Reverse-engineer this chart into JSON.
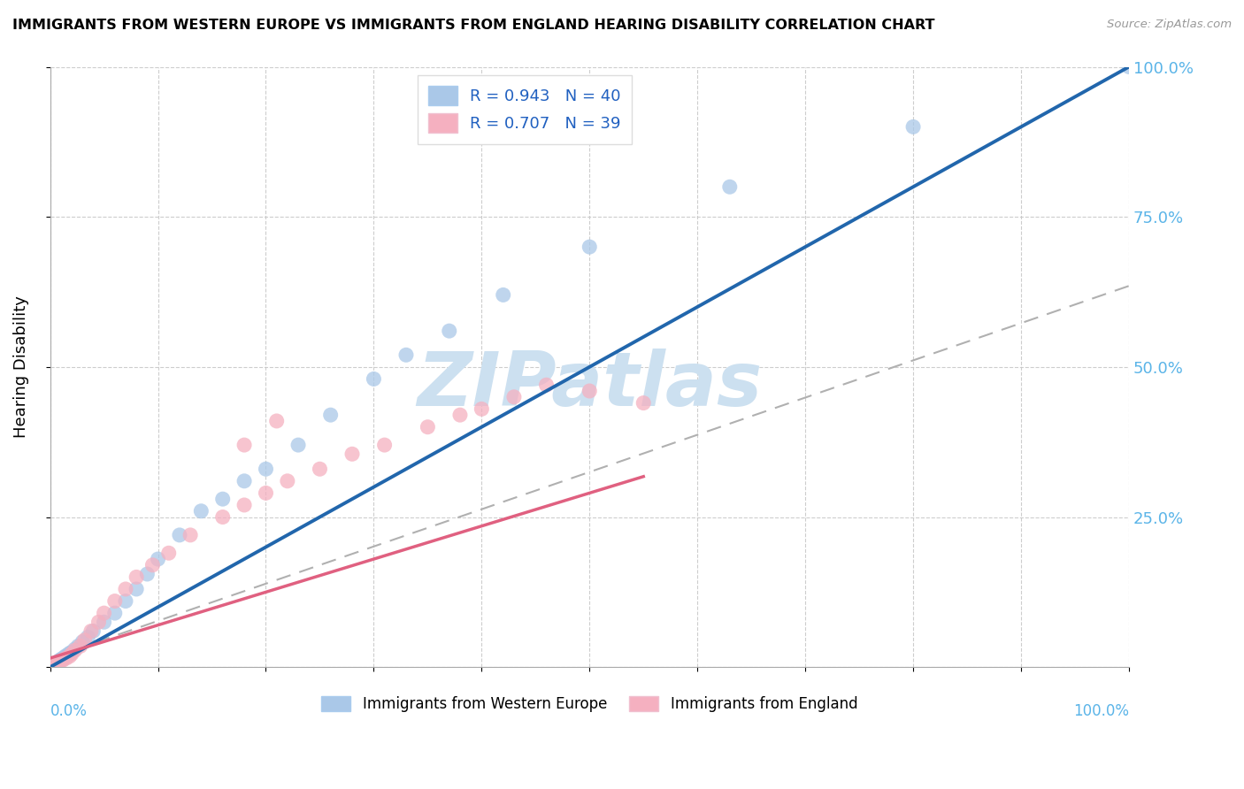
{
  "title": "IMMIGRANTS FROM WESTERN EUROPE VS IMMIGRANTS FROM ENGLAND HEARING DISABILITY CORRELATION CHART",
  "source": "Source: ZipAtlas.com",
  "ylabel": "Hearing Disability",
  "legend1_label": "R = 0.943   N = 40",
  "legend2_label": "R = 0.707   N = 39",
  "legend_bottom1": "Immigrants from Western Europe",
  "legend_bottom2": "Immigrants from England",
  "blue_scatter_color": "#aac8e8",
  "pink_scatter_color": "#f5b0c0",
  "blue_line_color": "#2166ac",
  "pink_line_color": "#e06080",
  "grid_color": "#c8c8c8",
  "tick_color": "#5ab4e8",
  "watermark_color": "#cce0f0",
  "blue_x": [
    0.2,
    0.3,
    0.4,
    0.5,
    0.6,
    0.7,
    0.8,
    0.9,
    1.0,
    1.2,
    1.4,
    1.6,
    1.8,
    2.0,
    2.3,
    2.6,
    3.0,
    3.5,
    4.0,
    5.0,
    6.0,
    7.0,
    8.0,
    9.0,
    10.0,
    12.0,
    14.0,
    16.0,
    18.0,
    20.0,
    23.0,
    26.0,
    30.0,
    33.0,
    37.0,
    42.0,
    50.0,
    63.0,
    80.0,
    100.0
  ],
  "blue_y": [
    0.3,
    0.4,
    0.5,
    0.6,
    0.7,
    0.8,
    1.0,
    1.1,
    1.3,
    1.5,
    1.8,
    2.0,
    2.3,
    2.5,
    3.0,
    3.5,
    4.2,
    5.0,
    6.0,
    7.5,
    9.0,
    11.0,
    13.0,
    15.5,
    18.0,
    22.0,
    26.0,
    28.0,
    31.0,
    33.0,
    37.0,
    42.0,
    48.0,
    52.0,
    56.0,
    62.0,
    70.0,
    80.0,
    90.0,
    100.0
  ],
  "pink_x": [
    0.2,
    0.3,
    0.4,
    0.5,
    0.6,
    0.8,
    1.0,
    1.2,
    1.5,
    1.8,
    2.0,
    2.3,
    2.8,
    3.2,
    3.8,
    4.5,
    5.0,
    6.0,
    7.0,
    8.0,
    9.5,
    11.0,
    13.0,
    16.0,
    18.0,
    20.0,
    22.0,
    25.0,
    28.0,
    31.0,
    35.0,
    40.0,
    43.0,
    46.0,
    18.0,
    21.0,
    38.0,
    50.0,
    55.0
  ],
  "pink_y": [
    0.3,
    0.4,
    0.4,
    0.5,
    0.6,
    0.8,
    1.0,
    1.2,
    1.5,
    1.8,
    2.2,
    2.8,
    3.5,
    4.5,
    6.0,
    7.5,
    9.0,
    11.0,
    13.0,
    15.0,
    17.0,
    19.0,
    22.0,
    25.0,
    27.0,
    29.0,
    31.0,
    33.0,
    35.5,
    37.0,
    40.0,
    43.0,
    45.0,
    47.0,
    37.0,
    41.0,
    42.0,
    46.0,
    44.0
  ],
  "blue_slope": 1.0,
  "blue_intercept": 0.0,
  "pink_slope": 0.55,
  "pink_intercept": 1.5,
  "pink_dashed_slope": 0.62,
  "pink_dashed_intercept": 1.5
}
